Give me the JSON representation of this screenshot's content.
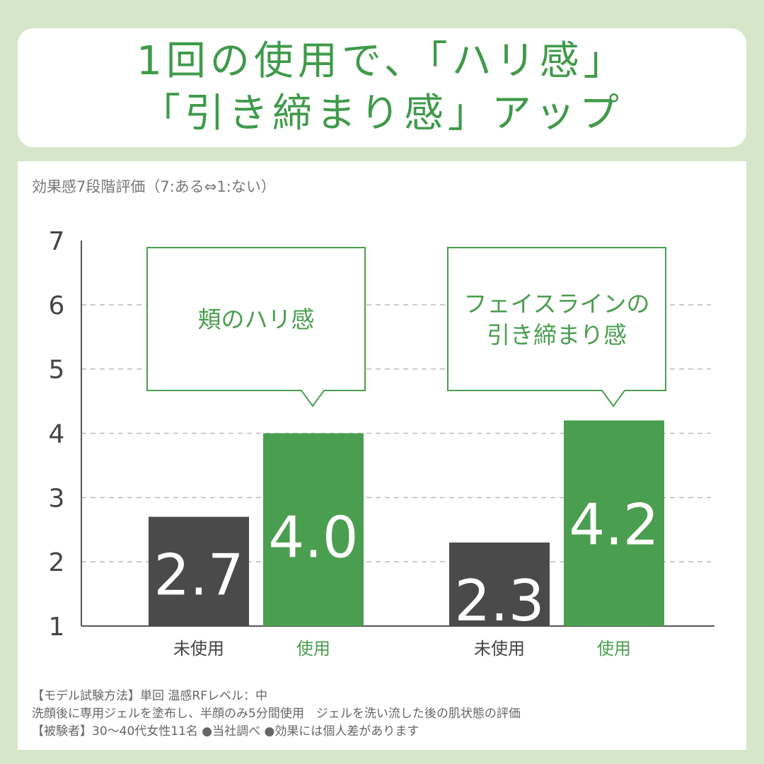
{
  "title": {
    "line1": "1回の使用で、「ハリ感」",
    "line2": "「引き締まり感」アップ"
  },
  "colors": {
    "background": "#d6e7c9",
    "accent": "#4a9e4f",
    "dark": "#4a4a4a",
    "title": "#3f9a4a"
  },
  "chart_data": {
    "type": "bar",
    "ylabel": "効果感7段階評価（7:ある⇔1:ない）",
    "ylim": [
      1,
      7
    ],
    "yticks": [
      "1",
      "2",
      "3",
      "4",
      "5",
      "6",
      "7"
    ],
    "grid": true,
    "groups": [
      {
        "callout": [
          "頬のハリ感"
        ],
        "bars": [
          {
            "label": "未使用",
            "value": 2.7,
            "value_label": "2.7",
            "color": "#4a4a4a"
          },
          {
            "label": "使用",
            "value": 4.0,
            "value_label": "4.0",
            "color": "#4a9e4f"
          }
        ]
      },
      {
        "callout": [
          "フェイスラインの",
          "引き締まり感"
        ],
        "bars": [
          {
            "label": "未使用",
            "value": 2.3,
            "value_label": "2.3",
            "color": "#4a4a4a"
          },
          {
            "label": "使用",
            "value": 4.2,
            "value_label": "4.2",
            "color": "#4a9e4f"
          }
        ]
      }
    ]
  },
  "footnotes": [
    "【モデル試験方法】単回 温感RFレベル：中",
    "洗顔後に専用ジェルを塗布し、半顔のみ5分間使用　ジェルを洗い流した後の肌状態の評価",
    "【被験者】30〜40代女性11名 ●当社調べ ●効果には個人差があります"
  ]
}
